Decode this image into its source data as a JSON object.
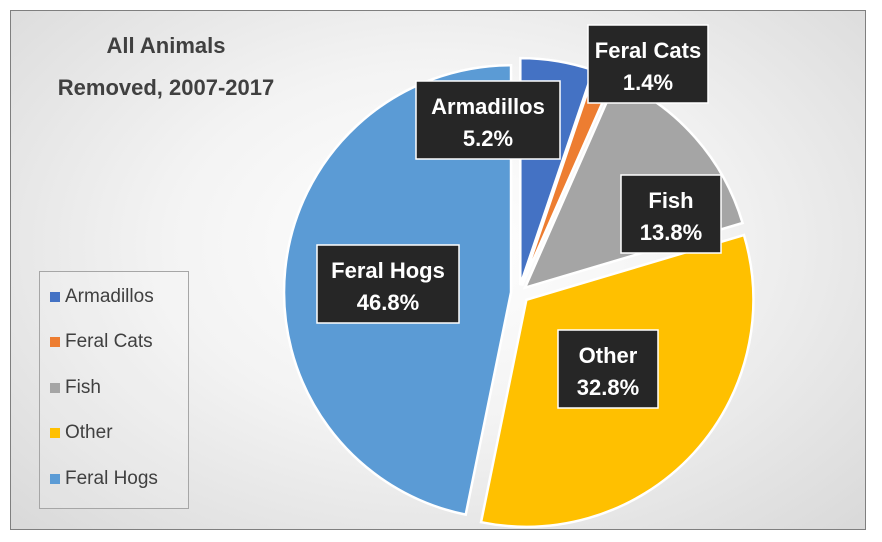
{
  "chart_data": {
    "type": "pie",
    "title": [
      "All Animals",
      "Removed, 2007-2017"
    ],
    "categories": [
      "Armadillos",
      "Feral Cats",
      "Fish",
      "Other",
      "Feral Hogs"
    ],
    "values": [
      5.2,
      1.4,
      13.8,
      32.8,
      46.8
    ],
    "value_labels": [
      "5.2%",
      "1.4%",
      "13.8%",
      "32.8%",
      "46.8%"
    ],
    "colors": [
      "#4472c4",
      "#ed7d31",
      "#a5a5a5",
      "#ffc000",
      "#5b9bd5"
    ],
    "exploded": true,
    "legend_position": "left"
  }
}
